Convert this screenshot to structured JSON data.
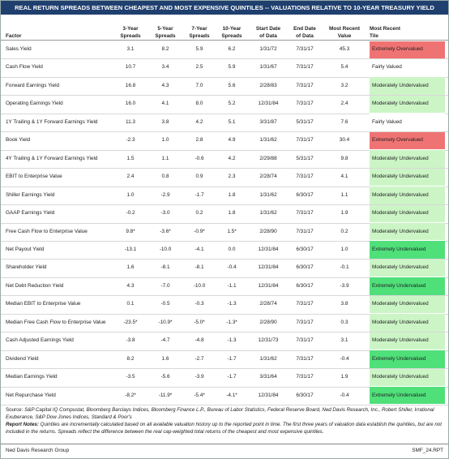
{
  "header": {
    "title": "REAL RETURN SPREADS BETWEEN CHEAPEST AND MOST EXPENSIVE QUINTILES -- VALUATIONS RELATIVE TO 10-YEAR TREASURY YIELD"
  },
  "table": {
    "columns": [
      [
        "Factor"
      ],
      [
        "3-Year",
        "Spreads"
      ],
      [
        "5-Year",
        "Spreads"
      ],
      [
        "7-Year",
        "Spreads"
      ],
      [
        "10-Year",
        "Spreads"
      ],
      [
        "Start Date",
        "of Data"
      ],
      [
        "End Date",
        "of Data"
      ],
      [
        "Most Recent",
        "Value"
      ],
      [
        "Most Recent",
        "Tile"
      ]
    ],
    "rows": [
      [
        "Sales Yield",
        "3.1",
        "8.2",
        "5.9",
        "6.2",
        "1/31/72",
        "7/31/17",
        "45.3",
        "Extremely Overvalued"
      ],
      [
        "Cash Flow Yield",
        "10.7",
        "3.4",
        "2.5",
        "5.9",
        "1/31/67",
        "7/31/17",
        "5.4",
        "Fairly Valued"
      ],
      [
        "Forward Earnings Yield",
        "16.8",
        "4.3",
        "7.0",
        "5.6",
        "2/28/83",
        "7/31/17",
        "3.2",
        "Moderately Undervalued"
      ],
      [
        "Operating Earnings Yield",
        "16.0",
        "4.1",
        "8.0",
        "5.2",
        "12/31/84",
        "7/31/17",
        "2.4",
        "Moderately Undervalued"
      ],
      [
        "1Y Trailing & 1Y Forward Earnings Yield",
        "11.3",
        "3.8",
        "4.2",
        "5.1",
        "3/31/87",
        "5/31/17",
        "7.6",
        "Fairly Valued"
      ],
      [
        "Book Yield",
        "-2.3",
        "1.0",
        "2.8",
        "4.9",
        "1/31/62",
        "7/31/17",
        "30.4",
        "Extremely Overvalued"
      ],
      [
        "4Y Trailing & 1Y Forward Earnings Yield",
        "1.5",
        "1.1",
        "-0.6",
        "4.2",
        "2/29/88",
        "5/31/17",
        "9.8",
        "Moderately Undervalued"
      ],
      [
        "EBIT to Enterprise Value",
        "2.4",
        "0.8",
        "0.9",
        "2.3",
        "2/28/74",
        "7/31/17",
        "4.1",
        "Moderately Undervalued"
      ],
      [
        "Shiller Earnings Yield",
        "1.0",
        "-2.9",
        "-1.7",
        "1.8",
        "1/31/62",
        "6/30/17",
        "1.1",
        "Moderately Undervalued"
      ],
      [
        "GAAP Earnings Yield",
        "-0.2",
        "-3.0",
        "0.2",
        "1.8",
        "1/31/62",
        "7/31/17",
        "1.9",
        "Moderately Undervalued"
      ],
      [
        "Free Cash Flow to Enterprise Value",
        "9.8*",
        "-3.6*",
        "-0.9*",
        "1.5*",
        "2/28/90",
        "7/31/17",
        "0.2",
        "Moderately Undervalued"
      ],
      [
        "Net Payout Yield",
        "-13.1",
        "-10.0",
        "-4.1",
        "0.0",
        "12/31/84",
        "6/30/17",
        "1.0",
        "Extremely Undervalued"
      ],
      [
        "Shareholder Yield",
        "1.6",
        "-8.1",
        "-8.1",
        "-0.4",
        "12/31/84",
        "6/30/17",
        "-0.1",
        "Moderately Undervalued"
      ],
      [
        "Net Debt Reduction Yield",
        "4.3",
        "-7.0",
        "-10.0",
        "-1.1",
        "12/31/84",
        "6/30/17",
        "-3.9",
        "Extremely Undervalued"
      ],
      [
        "Median EBIT to Enterprise Value",
        "0.1",
        "-0.5",
        "-0.3",
        "-1.3",
        "2/28/74",
        "7/31/17",
        "3.8",
        "Moderately Undervalued"
      ],
      [
        "Median Free Cash Flow to Enterprise Value",
        "-23.5*",
        "-10.9*",
        "-5.0*",
        "-1.3*",
        "2/28/90",
        "7/31/17",
        "0.3",
        "Moderately Undervalued"
      ],
      [
        "Cash Adjusted Earnings Yield",
        "-3.8",
        "-4.7",
        "-4.8",
        "-1.3",
        "12/31/73",
        "7/31/17",
        "3.1",
        "Moderately Undervalued"
      ],
      [
        "Dividend Yield",
        "8.2",
        "1.6",
        "-2.7",
        "-1.7",
        "1/31/62",
        "7/31/17",
        "-0.4",
        "Extremely Undervalued"
      ],
      [
        "Median Earnings Yield",
        "-3.5",
        "-5.6",
        "-3.9",
        "-1.7",
        "3/31/64",
        "7/31/17",
        "1.9",
        "Moderately Undervalued"
      ],
      [
        "Net Repurchase Yield",
        "-8.2*",
        "-11.9*",
        "-5.4*",
        "-4.1*",
        "12/31/84",
        "6/30/17",
        "-0.4",
        "Extremely Undervalued"
      ]
    ],
    "tile_colors": [
      "#f07373",
      "#ffffff",
      "#ccf5c6",
      "#ccf5c6",
      "#ffffff",
      "#f07373",
      "#ccf5c6",
      "#ccf5c6",
      "#ccf5c6",
      "#ccf5c6",
      "#ccf5c6",
      "#4fe07a",
      "#ccf5c6",
      "#4fe07a",
      "#ccf5c6",
      "#ccf5c6",
      "#ccf5c6",
      "#4fe07a",
      "#ccf5c6",
      "#4fe07a"
    ]
  },
  "footer": {
    "source_label": "Source:",
    "source": "S&P Capital IQ Compustat,  Bloomberg Barclays Indices,  Bloomberg Finance L.P.,  Bureau of Labor Statistics,  Federal Reserve Board,  Ned Davis Research, Inc.,  Robert Shiller, Irrational Exuberance,  S&P Dow Jones Indices,  Standard & Poor's",
    "notes_label": "Report Notes:",
    "notes": "Quintiles are incrementally calculated based on all available valuation history up to the reported point in time.  The first three years of valuation data establish the quintiles, but are not included in the returns.  Spreads reflect the difference between the real cap-weighted total returns of the cheapest and most expensive quintiles.",
    "publisher": "Ned Davis Research Group",
    "code": "SMF_24.RPT"
  }
}
